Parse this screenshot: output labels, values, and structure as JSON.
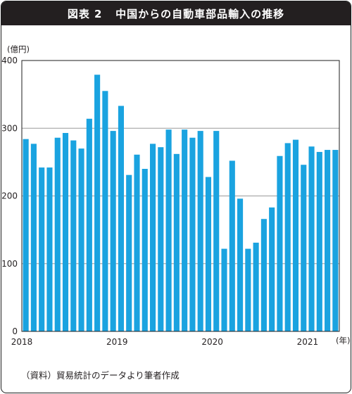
{
  "figure_label": "図表 2",
  "title": "中国からの自動車部品輸入の推移",
  "source": "（資料）貿易統計のデータより筆者作成",
  "colors": {
    "bar": "#1aa3e0",
    "title_bg": "#231f20",
    "grid": "#9a9a9a"
  },
  "chart_data": {
    "type": "bar",
    "title": "中国からの自動車部品輸入の推移",
    "ylabel": "(億円)",
    "xlabel": "(年)",
    "ylim": [
      0,
      400
    ],
    "yticks": [
      "0",
      "100",
      "200",
      "300",
      "400"
    ],
    "grid": true,
    "categories": [
      "2018-01",
      "2018-02",
      "2018-03",
      "2018-04",
      "2018-05",
      "2018-06",
      "2018-07",
      "2018-08",
      "2018-09",
      "2018-10",
      "2018-11",
      "2018-12",
      "2019-01",
      "2019-02",
      "2019-03",
      "2019-04",
      "2019-05",
      "2019-06",
      "2019-07",
      "2019-08",
      "2019-09",
      "2019-10",
      "2019-11",
      "2019-12",
      "2020-01",
      "2020-02",
      "2020-03",
      "2020-04",
      "2020-05",
      "2020-06",
      "2020-07",
      "2020-08",
      "2020-09",
      "2020-10",
      "2020-11",
      "2020-12",
      "2021-01",
      "2021-02",
      "2021-03",
      "2021-04"
    ],
    "values": [
      284,
      277,
      242,
      242,
      286,
      293,
      282,
      270,
      314,
      379,
      355,
      296,
      333,
      231,
      261,
      240,
      277,
      272,
      298,
      262,
      298,
      286,
      296,
      228,
      296,
      122,
      252,
      196,
      122,
      131,
      166,
      183,
      259,
      278,
      283,
      246,
      273,
      265,
      268,
      268
    ],
    "year_labels": [
      {
        "label": "2018",
        "index": 0
      },
      {
        "label": "2019",
        "index": 12
      },
      {
        "label": "2020",
        "index": 24
      },
      {
        "label": "2021",
        "index": 36
      }
    ]
  }
}
